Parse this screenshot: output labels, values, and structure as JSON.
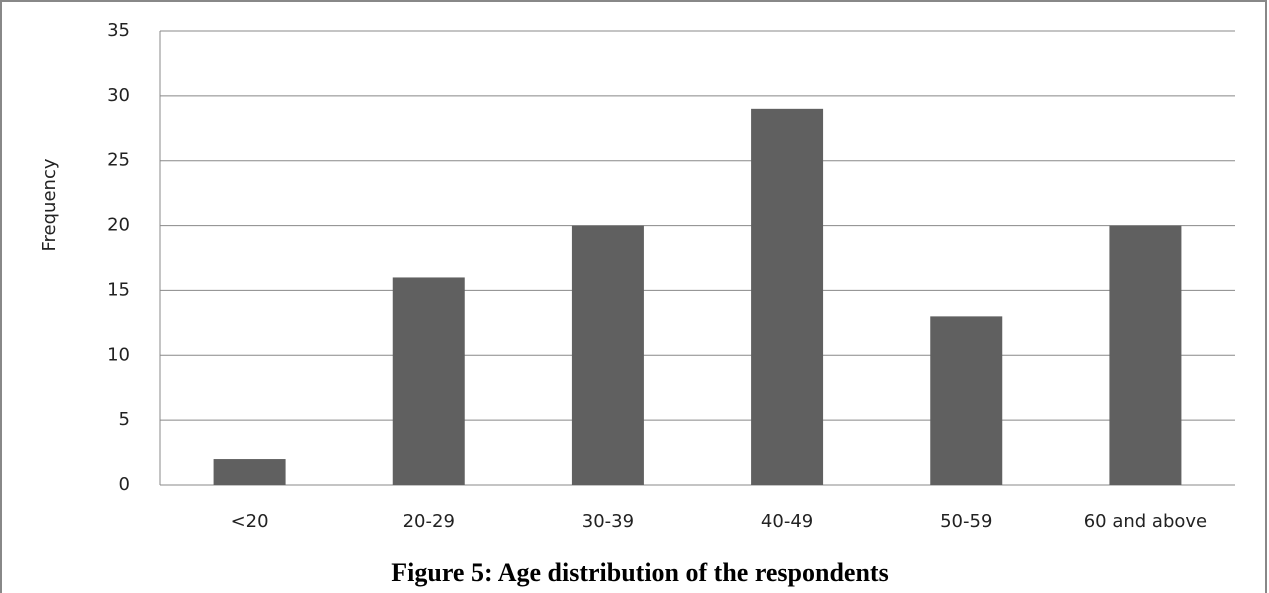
{
  "chart_data": {
    "type": "bar",
    "title": "Figure 5: Age distribution of the respondents",
    "y_label": "Frequency",
    "categories": [
      "<20",
      "20-29",
      "30-39",
      "40-49",
      "50-59",
      "60 and above"
    ],
    "values": [
      2,
      16,
      20,
      29,
      13,
      20
    ],
    "color": "#606060",
    "ylim": [
      0,
      35
    ],
    "yticks": [
      0,
      5,
      10,
      15,
      20,
      25,
      30,
      35
    ],
    "grid": true
  }
}
